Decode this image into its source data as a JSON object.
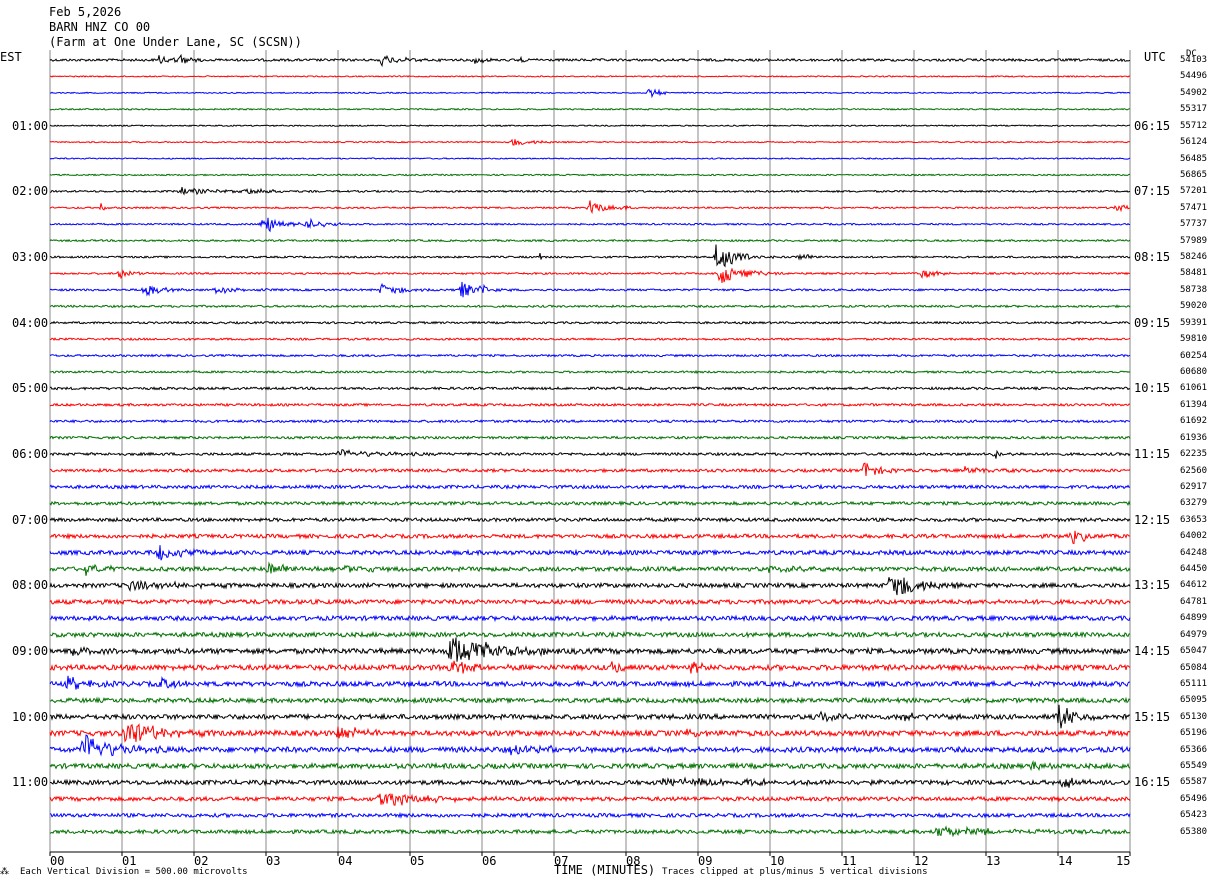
{
  "header": {
    "date": "Feb 5,2026",
    "channel": "BARN HNZ CO 00",
    "location": "(Farm at One Under Lane, SC (SCSN))"
  },
  "left_label": "EST",
  "right_label": "UTC",
  "dc_label": "DC",
  "footer": {
    "scale": "Each Vertical Division =  500.00 microvolts",
    "xlabel": "TIME (MINUTES)",
    "clip": "Traces clipped at plus/minus 5 vertical divisions"
  },
  "colors": {
    "trace_cycle": [
      "#000000",
      "#ff0000",
      "#0000ff",
      "#007000"
    ],
    "grid": "#888888"
  },
  "chart_data": {
    "type": "line",
    "title": "",
    "xlabel": "TIME (MINUTES)",
    "x_ticks": [
      "00",
      "01",
      "02",
      "03",
      "04",
      "05",
      "06",
      "07",
      "08",
      "09",
      "10",
      "11",
      "12",
      "13",
      "14",
      "15"
    ],
    "xlim": [
      0,
      15
    ],
    "rows_per_hour": 4,
    "row_minutes": 15,
    "est_hour_labels": [
      "01:00",
      "02:00",
      "03:00",
      "04:00",
      "05:00",
      "06:00",
      "07:00",
      "08:00",
      "09:00",
      "10:00",
      "11:00"
    ],
    "utc_hour_labels": [
      "06:15",
      "07:15",
      "08:15",
      "09:15",
      "10:15",
      "11:15",
      "12:15",
      "13:15",
      "14:15",
      "15:15",
      "16:15"
    ],
    "dc_offsets": [
      54103,
      54496,
      54902,
      55317,
      55712,
      56124,
      56485,
      56865,
      57201,
      57471,
      57737,
      57989,
      58246,
      58481,
      58738,
      59020,
      59391,
      59810,
      60254,
      60680,
      61061,
      61394,
      61692,
      61936,
      62235,
      62560,
      62917,
      63279,
      63653,
      64002,
      64248,
      64450,
      64612,
      64781,
      64899,
      64979,
      65047,
      65084,
      65111,
      65095,
      65130,
      65196,
      65366,
      65549,
      65587,
      65496,
      65423,
      65380
    ],
    "noise_levels": [
      1.2,
      0.6,
      0.6,
      0.7,
      0.6,
      0.6,
      0.6,
      0.7,
      0.9,
      0.8,
      0.8,
      0.9,
      0.9,
      0.9,
      1.0,
      1.0,
      1.0,
      1.0,
      1.0,
      1.0,
      1.2,
      1.2,
      1.2,
      1.2,
      1.3,
      1.5,
      1.6,
      1.6,
      1.7,
      1.9,
      2.1,
      2.1,
      2.1,
      2.2,
      2.2,
      2.2,
      2.6,
      2.6,
      2.4,
      2.2,
      2.4,
      2.6,
      2.6,
      2.4,
      2.2,
      2.0,
      1.8,
      1.8
    ],
    "events": [
      {
        "row": 0,
        "t": 1.5,
        "amp": 5,
        "dur": 0.25
      },
      {
        "row": 0,
        "t": 1.8,
        "amp": 4,
        "dur": 0.2
      },
      {
        "row": 0,
        "t": 4.6,
        "amp": 5,
        "dur": 0.3
      },
      {
        "row": 0,
        "t": 5.9,
        "amp": 4,
        "dur": 0.15
      },
      {
        "row": 0,
        "t": 6.5,
        "amp": 3,
        "dur": 0.1
      },
      {
        "row": 2,
        "t": 8.3,
        "amp": 6,
        "dur": 0.15
      },
      {
        "row": 5,
        "t": 6.4,
        "amp": 4,
        "dur": 0.3
      },
      {
        "row": 8,
        "t": 1.8,
        "amp": 4,
        "dur": 0.4
      },
      {
        "row": 8,
        "t": 2.7,
        "amp": 4,
        "dur": 0.3
      },
      {
        "row": 9,
        "t": 0.7,
        "amp": 5,
        "dur": 0.05
      },
      {
        "row": 9,
        "t": 7.5,
        "amp": 8,
        "dur": 0.2
      },
      {
        "row": 9,
        "t": 8.0,
        "amp": 3,
        "dur": 0.1
      },
      {
        "row": 9,
        "t": 14.8,
        "amp": 4,
        "dur": 0.2
      },
      {
        "row": 10,
        "t": 2.95,
        "amp": 12,
        "dur": 0.2
      },
      {
        "row": 10,
        "t": 3.55,
        "amp": 6,
        "dur": 0.25
      },
      {
        "row": 12,
        "t": 6.8,
        "amp": 4,
        "dur": 0.05
      },
      {
        "row": 12,
        "t": 9.25,
        "amp": 14,
        "dur": 0.3
      },
      {
        "row": 12,
        "t": 10.4,
        "amp": 4,
        "dur": 0.2
      },
      {
        "row": 13,
        "t": 0.95,
        "amp": 7,
        "dur": 0.15
      },
      {
        "row": 13,
        "t": 9.3,
        "amp": 12,
        "dur": 0.3
      },
      {
        "row": 13,
        "t": 12.1,
        "amp": 5,
        "dur": 0.2
      },
      {
        "row": 14,
        "t": 1.3,
        "amp": 8,
        "dur": 0.2
      },
      {
        "row": 14,
        "t": 2.3,
        "amp": 4,
        "dur": 0.3
      },
      {
        "row": 14,
        "t": 4.6,
        "amp": 7,
        "dur": 0.25
      },
      {
        "row": 14,
        "t": 5.7,
        "amp": 9,
        "dur": 0.25
      },
      {
        "row": 14,
        "t": 6.0,
        "amp": 6,
        "dur": 0.1
      },
      {
        "row": 24,
        "t": 4.0,
        "amp": 4,
        "dur": 0.6
      },
      {
        "row": 24,
        "t": 13.1,
        "amp": 6,
        "dur": 0.15
      },
      {
        "row": 25,
        "t": 11.3,
        "amp": 9,
        "dur": 0.2
      },
      {
        "row": 25,
        "t": 12.7,
        "amp": 4,
        "dur": 0.3
      },
      {
        "row": 29,
        "t": 14.2,
        "amp": 10,
        "dur": 0.15
      },
      {
        "row": 30,
        "t": 1.5,
        "amp": 9,
        "dur": 0.3
      },
      {
        "row": 31,
        "t": 0.5,
        "amp": 5,
        "dur": 0.3
      },
      {
        "row": 31,
        "t": 3.0,
        "amp": 6,
        "dur": 0.4
      },
      {
        "row": 31,
        "t": 4.1,
        "amp": 4,
        "dur": 0.4
      },
      {
        "row": 31,
        "t": 10.0,
        "amp": 4,
        "dur": 0.3
      },
      {
        "row": 32,
        "t": 1.1,
        "amp": 5,
        "dur": 0.6
      },
      {
        "row": 32,
        "t": 11.65,
        "amp": 16,
        "dur": 0.35
      },
      {
        "row": 36,
        "t": 0.3,
        "amp": 6,
        "dur": 0.2
      },
      {
        "row": 36,
        "t": 5.55,
        "amp": 16,
        "dur": 0.6
      },
      {
        "row": 37,
        "t": 5.55,
        "amp": 8,
        "dur": 0.3
      },
      {
        "row": 37,
        "t": 7.8,
        "amp": 9,
        "dur": 0.1
      },
      {
        "row": 37,
        "t": 8.9,
        "amp": 8,
        "dur": 0.1
      },
      {
        "row": 38,
        "t": 0.25,
        "amp": 7,
        "dur": 0.25
      },
      {
        "row": 38,
        "t": 1.55,
        "amp": 5,
        "dur": 0.25
      },
      {
        "row": 40,
        "t": 10.7,
        "amp": 8,
        "dur": 0.15
      },
      {
        "row": 40,
        "t": 11.8,
        "amp": 4,
        "dur": 0.3
      },
      {
        "row": 40,
        "t": 14.0,
        "amp": 14,
        "dur": 0.2
      },
      {
        "row": 41,
        "t": 1.05,
        "amp": 16,
        "dur": 0.4
      },
      {
        "row": 41,
        "t": 4.0,
        "amp": 6,
        "dur": 0.4
      },
      {
        "row": 41,
        "t": 8.8,
        "amp": 4,
        "dur": 0.3
      },
      {
        "row": 42,
        "t": 0.45,
        "amp": 16,
        "dur": 0.4
      },
      {
        "row": 42,
        "t": 6.4,
        "amp": 4,
        "dur": 0.6
      },
      {
        "row": 43,
        "t": 13.6,
        "amp": 4,
        "dur": 0.2
      },
      {
        "row": 44,
        "t": 8.5,
        "amp": 4,
        "dur": 1.5
      },
      {
        "row": 44,
        "t": 14.05,
        "amp": 6,
        "dur": 0.2
      },
      {
        "row": 45,
        "t": 4.55,
        "amp": 8,
        "dur": 0.6
      },
      {
        "row": 47,
        "t": 12.3,
        "amp": 5,
        "dur": 1.0
      }
    ]
  }
}
